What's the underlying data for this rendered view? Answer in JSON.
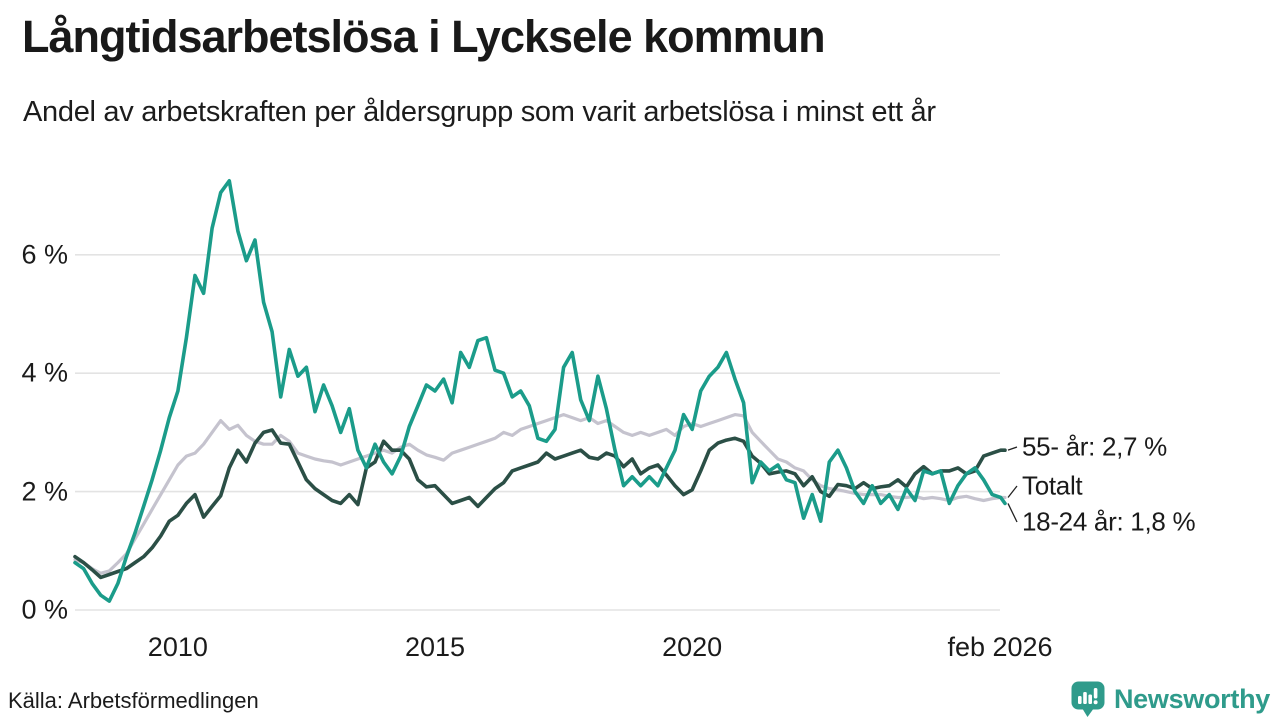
{
  "header": {
    "title": "Långtidsarbetslösa i Lycksele kommun",
    "subtitle": "Andel av arbetskraften per åldersgrupp som varit arbetslösa i minst ett år"
  },
  "footer": {
    "source": "Källa: Arbetsförmedlingen",
    "brand_name": "Newsworthy",
    "brand_icon": "bar-chart-speech-bubble-icon"
  },
  "colors": {
    "teal": "#1b9c8a",
    "dark": "#2b4f46",
    "gray": "#c5c3ce",
    "grid": "#e3e3e3",
    "text": "#1b1b1b",
    "leader": "#222222",
    "brand": "#2f9b8b",
    "background": "#ffffff"
  },
  "chart_data": {
    "type": "line",
    "title": "Långtidsarbetslösa i Lycksele kommun",
    "subtitle": "Andel av arbetskraften per åldersgrupp som varit arbetslösa i minst ett år",
    "unit": "%",
    "frequency": "monthly (plotted every 2 months)",
    "x_start_year": 2008.0,
    "x_end_year": 2026.083,
    "points_step_years": 0.1666667,
    "ylim": [
      0,
      7.6
    ],
    "grid": true,
    "legend_position": "right-end-annotations",
    "y_ticks": [
      {
        "value": 0,
        "label": "0 %"
      },
      {
        "value": 2,
        "label": "2 %"
      },
      {
        "value": 4,
        "label": "4 %"
      },
      {
        "value": 6,
        "label": "6 %"
      }
    ],
    "x_ticks": [
      {
        "year": 2010,
        "label": "2010"
      },
      {
        "year": 2015,
        "label": "2015"
      },
      {
        "year": 2020,
        "label": "2020"
      },
      {
        "year": 2026.083,
        "label": "feb 2026"
      }
    ],
    "series": [
      {
        "name": "Totalt",
        "color_key": "gray",
        "end_label": "Totalt",
        "end_value": 1.9,
        "stroke_width": 3.2,
        "values": [
          0.85,
          0.8,
          0.7,
          0.62,
          0.66,
          0.8,
          0.95,
          1.2,
          1.45,
          1.7,
          1.95,
          2.2,
          2.45,
          2.6,
          2.65,
          2.8,
          3.0,
          3.2,
          3.05,
          3.12,
          2.95,
          2.85,
          2.8,
          2.8,
          2.95,
          2.85,
          2.65,
          2.6,
          2.55,
          2.52,
          2.5,
          2.45,
          2.5,
          2.55,
          2.6,
          2.65,
          2.7,
          2.65,
          2.75,
          2.8,
          2.7,
          2.62,
          2.58,
          2.53,
          2.65,
          2.7,
          2.75,
          2.8,
          2.85,
          2.9,
          3.0,
          2.95,
          3.05,
          3.1,
          3.15,
          3.2,
          3.25,
          3.3,
          3.25,
          3.2,
          3.25,
          3.15,
          3.2,
          3.1,
          3.0,
          2.95,
          3.0,
          2.95,
          3.0,
          3.05,
          2.95,
          3.1,
          3.15,
          3.1,
          3.15,
          3.2,
          3.25,
          3.3,
          3.28,
          3.0,
          2.85,
          2.7,
          2.55,
          2.5,
          2.4,
          2.35,
          2.2,
          2.1,
          2.05,
          2.03,
          2.0,
          1.97,
          1.95,
          1.95,
          1.95,
          1.92,
          1.9,
          1.9,
          1.92,
          1.88,
          1.9,
          1.88,
          1.85,
          1.9,
          1.92,
          1.88,
          1.85,
          1.88,
          1.9,
          1.9
        ]
      },
      {
        "name": "55- år",
        "color_key": "dark",
        "end_label": "55- år: 2,7 %",
        "end_value": 2.7,
        "stroke_width": 3.6,
        "values": [
          0.9,
          0.8,
          0.68,
          0.55,
          0.6,
          0.65,
          0.7,
          0.8,
          0.9,
          1.05,
          1.25,
          1.5,
          1.6,
          1.8,
          1.95,
          1.57,
          1.75,
          1.93,
          2.4,
          2.7,
          2.5,
          2.82,
          3.0,
          3.04,
          2.82,
          2.8,
          2.5,
          2.2,
          2.05,
          1.95,
          1.85,
          1.8,
          1.95,
          1.78,
          2.4,
          2.5,
          2.85,
          2.7,
          2.7,
          2.55,
          2.2,
          2.08,
          2.1,
          1.95,
          1.8,
          1.85,
          1.9,
          1.75,
          1.9,
          2.05,
          2.15,
          2.35,
          2.4,
          2.45,
          2.5,
          2.65,
          2.55,
          2.6,
          2.65,
          2.7,
          2.58,
          2.55,
          2.65,
          2.6,
          2.42,
          2.55,
          2.3,
          2.4,
          2.45,
          2.28,
          2.1,
          1.95,
          2.03,
          2.35,
          2.7,
          2.82,
          2.87,
          2.9,
          2.85,
          2.6,
          2.48,
          2.3,
          2.33,
          2.35,
          2.3,
          2.1,
          2.25,
          2.0,
          1.92,
          2.12,
          2.1,
          2.05,
          2.15,
          2.05,
          2.08,
          2.1,
          2.2,
          2.08,
          2.3,
          2.42,
          2.3,
          2.35,
          2.35,
          2.4,
          2.3,
          2.35,
          2.6,
          2.65,
          2.7,
          2.7
        ]
      },
      {
        "name": "18-24 år",
        "color_key": "teal",
        "end_label": "18-24 år: 1,8 %",
        "end_value": 1.8,
        "stroke_width": 3.6,
        "values": [
          0.8,
          0.7,
          0.45,
          0.25,
          0.15,
          0.45,
          0.9,
          1.3,
          1.75,
          2.2,
          2.7,
          3.25,
          3.7,
          4.6,
          5.65,
          5.35,
          6.45,
          7.05,
          7.25,
          6.4,
          5.9,
          6.25,
          5.2,
          4.7,
          3.6,
          4.4,
          3.95,
          4.1,
          3.35,
          3.8,
          3.45,
          3.0,
          3.4,
          2.7,
          2.4,
          2.8,
          2.5,
          2.3,
          2.6,
          3.1,
          3.45,
          3.8,
          3.7,
          3.9,
          3.5,
          4.35,
          4.1,
          4.55,
          4.6,
          4.05,
          4.0,
          3.6,
          3.7,
          3.45,
          2.9,
          2.85,
          3.05,
          4.1,
          4.35,
          3.55,
          3.2,
          3.95,
          3.4,
          2.7,
          2.1,
          2.25,
          2.1,
          2.25,
          2.1,
          2.4,
          2.7,
          3.3,
          3.05,
          3.7,
          3.95,
          4.1,
          4.35,
          3.9,
          3.5,
          2.15,
          2.5,
          2.35,
          2.45,
          2.2,
          2.15,
          1.55,
          1.95,
          1.5,
          2.5,
          2.7,
          2.4,
          2.0,
          1.8,
          2.1,
          1.8,
          1.95,
          1.7,
          2.05,
          1.85,
          2.35,
          2.3,
          2.35,
          1.8,
          2.1,
          2.3,
          2.4,
          2.2,
          1.95,
          1.9,
          1.8
        ]
      }
    ]
  }
}
